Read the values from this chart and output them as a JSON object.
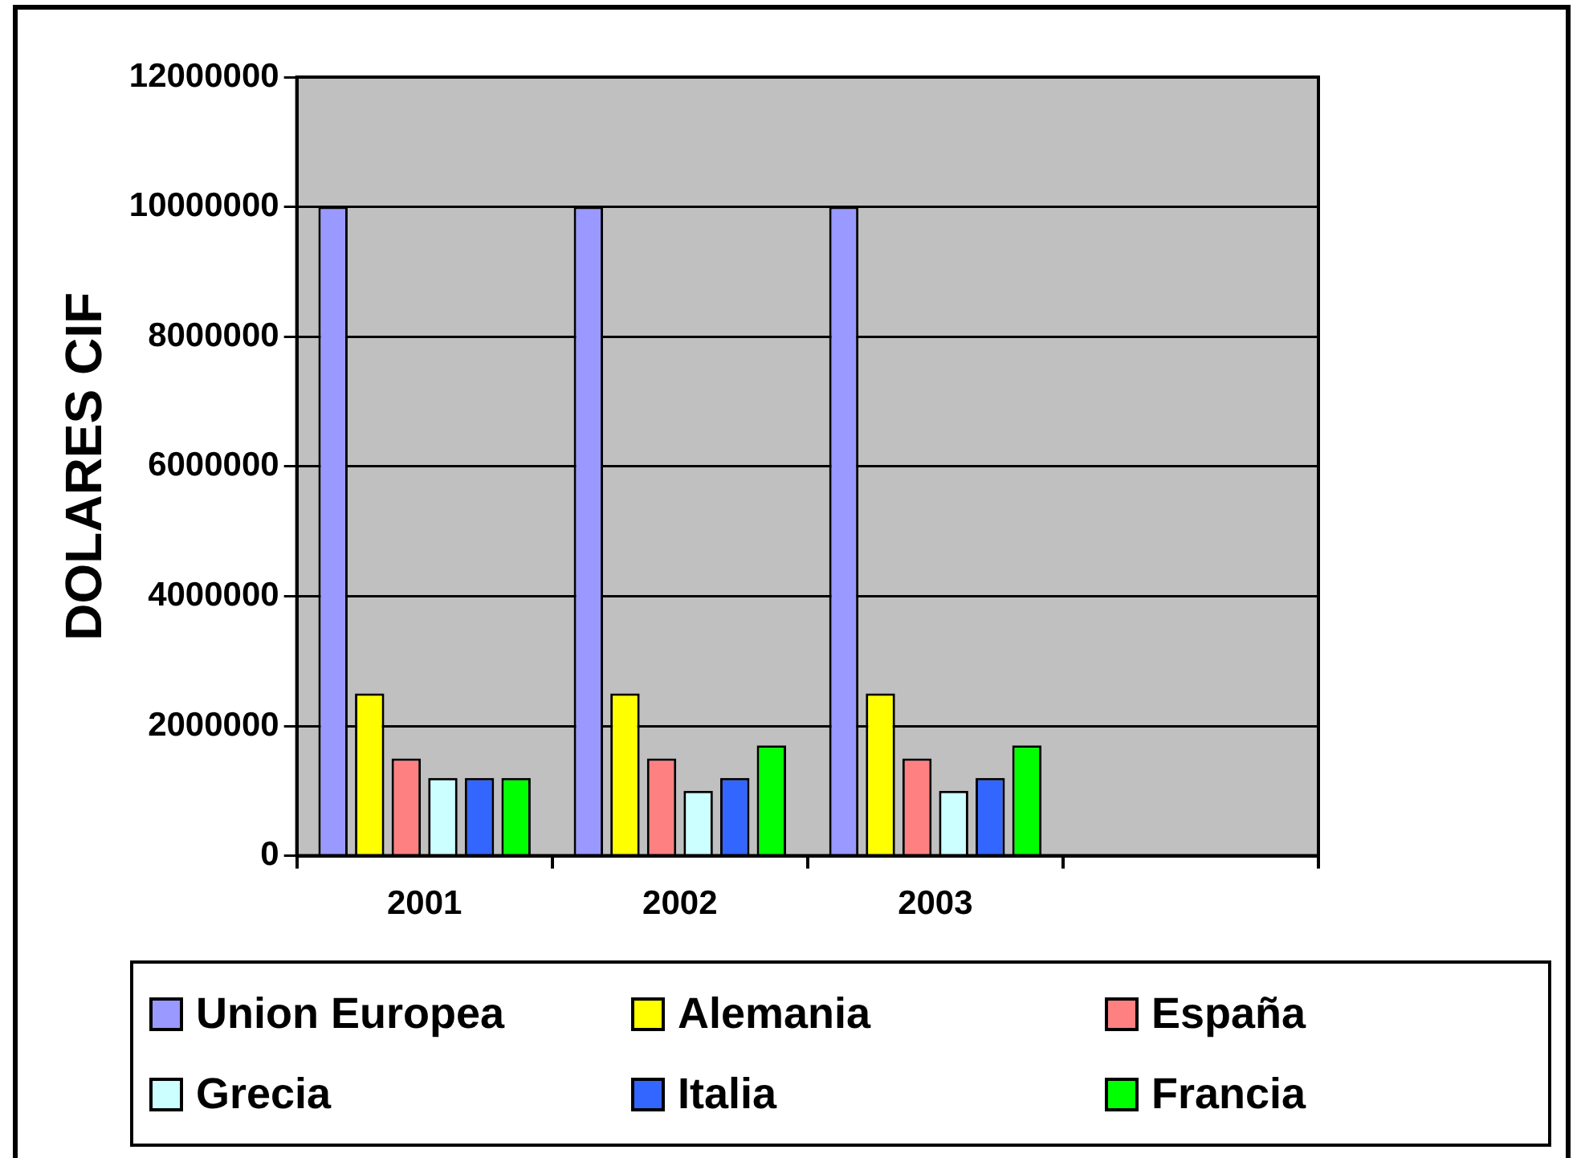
{
  "chart_data": {
    "type": "bar",
    "ylabel": "DOLARES CIF",
    "categories": [
      "2001",
      "2002",
      "2003",
      null
    ],
    "series": [
      {
        "name": "Union Europea",
        "color": "#9999ff",
        "values": [
          10000000,
          10000000,
          10000000,
          null
        ]
      },
      {
        "name": "Alemania",
        "color": "#ffff00",
        "values": [
          2500000,
          2500000,
          2500000,
          null
        ]
      },
      {
        "name": "España",
        "color": "#ff8080",
        "values": [
          1500000,
          1500000,
          1500000,
          null
        ]
      },
      {
        "name": "Grecia",
        "color": "#ccffff",
        "values": [
          1200000,
          1000000,
          1000000,
          null
        ]
      },
      {
        "name": "Italia",
        "color": "#3366ff",
        "values": [
          1200000,
          1200000,
          1200000,
          null
        ]
      },
      {
        "name": "Francia",
        "color": "#00ff00",
        "values": [
          1200000,
          1700000,
          1700000,
          null
        ]
      }
    ],
    "ylim": [
      0,
      12000000
    ],
    "yticks": [
      0,
      2000000,
      4000000,
      6000000,
      8000000,
      10000000,
      12000000
    ],
    "grid": "y",
    "legend": "bottom"
  }
}
